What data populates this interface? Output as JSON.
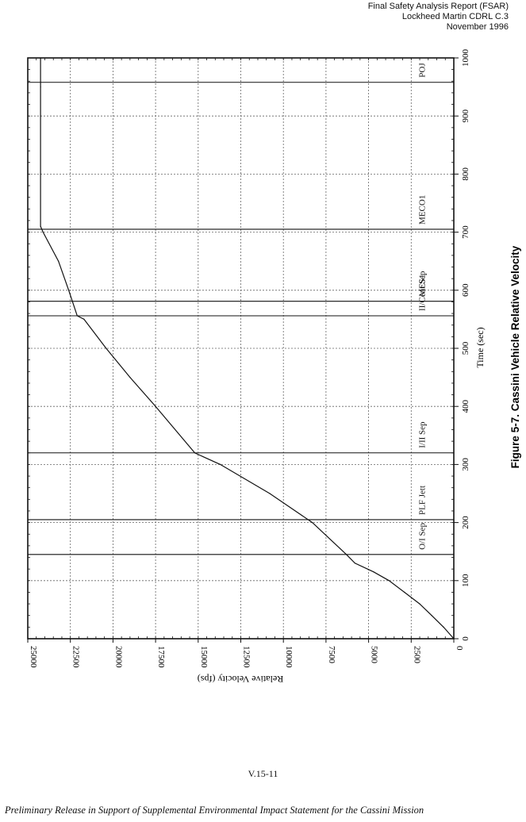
{
  "header": {
    "line1": "Final Safety Analysis Report (FSAR)",
    "line2": "Lockheed Martin CDRL C.3",
    "line3": "November 1996"
  },
  "figure": {
    "caption": "Figure 5-7.  Cassini Vehicle Relative Velocity"
  },
  "footer": {
    "page_number": "V.15-11",
    "note": "Preliminary Release in Support of Supplemental Environmental Impact Statement for the Cassini Mission"
  },
  "chart_data": {
    "type": "line",
    "orientation": "rotated 90° clockwise",
    "xlabel": "Time (sec)",
    "ylabel": "Relative Velocity (fps)",
    "xlim": [
      0,
      1000
    ],
    "ylim": [
      0,
      25000
    ],
    "x_ticks": [
      0,
      100,
      200,
      300,
      400,
      500,
      600,
      700,
      800,
      900,
      1000
    ],
    "x_tick_labels": [
      "0",
      "100",
      "200",
      "300",
      "400",
      "500",
      "600",
      "700",
      "800",
      "900",
      "1000"
    ],
    "y_ticks": [
      0,
      2500,
      5000,
      7500,
      10000,
      12500,
      15000,
      17500,
      20000,
      22500,
      25000
    ],
    "y_tick_labels": [
      "0",
      "2500",
      "5000",
      "7500",
      "10000",
      "12500",
      "15000",
      "17500",
      "20000",
      "22500",
      "25000"
    ],
    "grid": true,
    "series": [
      {
        "x": [
          0,
          20,
          40,
          60,
          80,
          100,
          115,
          130,
          145,
          200,
          250,
          300,
          320,
          400,
          450,
          500,
          550,
          556,
          600,
          650,
          700,
          710,
          800,
          900,
          950,
          1000
        ],
        "y": [
          0,
          600,
          1300,
          2000,
          2900,
          3800,
          4700,
          5800,
          6300,
          8300,
          10800,
          13700,
          15200,
          17500,
          19000,
          20400,
          21700,
          22100,
          22600,
          23200,
          24100,
          24250,
          24250,
          24250,
          24250,
          24250
        ]
      }
    ],
    "events": [
      {
        "label": "O/I Sep",
        "time": 145
      },
      {
        "label": "PLF Jett",
        "time": 205
      },
      {
        "label": "I/II Sep",
        "time": 320
      },
      {
        "label": "II/Cent Sep",
        "time": 556
      },
      {
        "label": "MES1",
        "time": 581
      },
      {
        "label": "MECO1",
        "time": 705
      },
      {
        "label": "POJ",
        "time": 958
      }
    ]
  }
}
